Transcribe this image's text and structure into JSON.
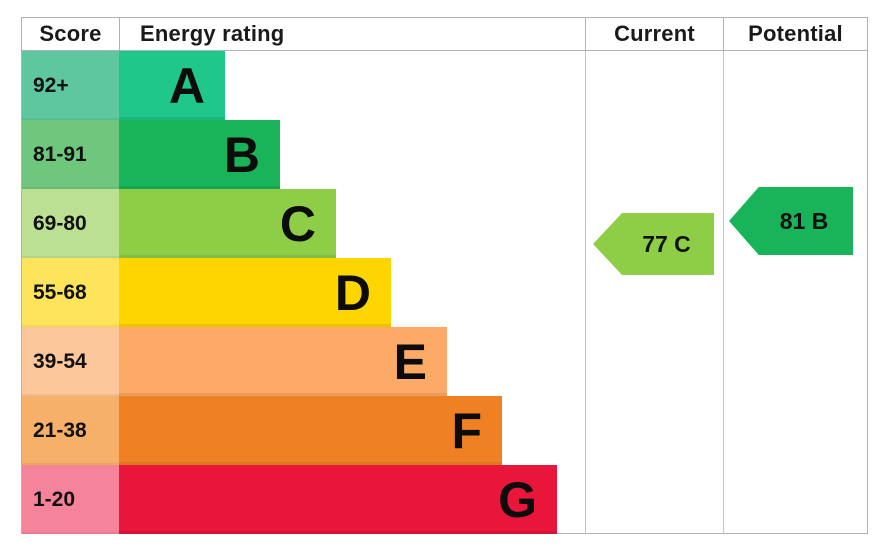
{
  "header": {
    "score": "Score",
    "energy_rating": "Energy rating",
    "current": "Current",
    "potential": "Potential"
  },
  "bands": [
    {
      "letter": "A",
      "score_range": "92+",
      "color": "#1fc78a",
      "score_bg": "#5fc7a0"
    },
    {
      "letter": "B",
      "score_range": "81-91",
      "color": "#19b459",
      "score_bg": "#6ec77d"
    },
    {
      "letter": "C",
      "score_range": "69-80",
      "color": "#8dce46",
      "score_bg": "#bbe092"
    },
    {
      "letter": "D",
      "score_range": "55-68",
      "color": "#ffd500",
      "score_bg": "#fde45b"
    },
    {
      "letter": "E",
      "score_range": "39-54",
      "color": "#fcaa65",
      "score_bg": "#fcc89b"
    },
    {
      "letter": "F",
      "score_range": "21-38",
      "color": "#ef8023",
      "score_bg": "#f6b06a"
    },
    {
      "letter": "G",
      "score_range": "1-20",
      "color": "#e9153b",
      "score_bg": "#f5839a"
    }
  ],
  "current": {
    "label": "77 C",
    "value": 77,
    "band": "C",
    "color": "#8dce46"
  },
  "potential": {
    "label": "81 B",
    "value": 81,
    "band": "B",
    "color": "#19b459"
  },
  "chart_data": {
    "type": "bar",
    "title": "Energy rating",
    "orientation": "horizontal",
    "categories": [
      "A",
      "B",
      "C",
      "D",
      "E",
      "F",
      "G"
    ],
    "score_ranges": [
      "92+",
      "81-91",
      "69-80",
      "55-68",
      "39-54",
      "21-38",
      "1-20"
    ],
    "bar_lengths_relative": [
      1,
      2,
      3,
      4,
      5,
      6,
      7
    ],
    "band_colors": [
      "#1fc78a",
      "#19b459",
      "#8dce46",
      "#ffd500",
      "#fcaa65",
      "#ef8023",
      "#e9153b"
    ],
    "score_cell_colors": [
      "#5fc7a0",
      "#6ec77d",
      "#bbe092",
      "#fde45b",
      "#fcc89b",
      "#f6b06a",
      "#f5839a"
    ],
    "columns": [
      "Score",
      "Energy rating",
      "Current",
      "Potential"
    ],
    "markers": [
      {
        "name": "Current",
        "value": 77,
        "band": "C",
        "color": "#8dce46",
        "label": "77 C"
      },
      {
        "name": "Potential",
        "value": 81,
        "band": "B",
        "color": "#19b459",
        "label": "81 B"
      }
    ],
    "legend_position": "none",
    "grid": false
  }
}
